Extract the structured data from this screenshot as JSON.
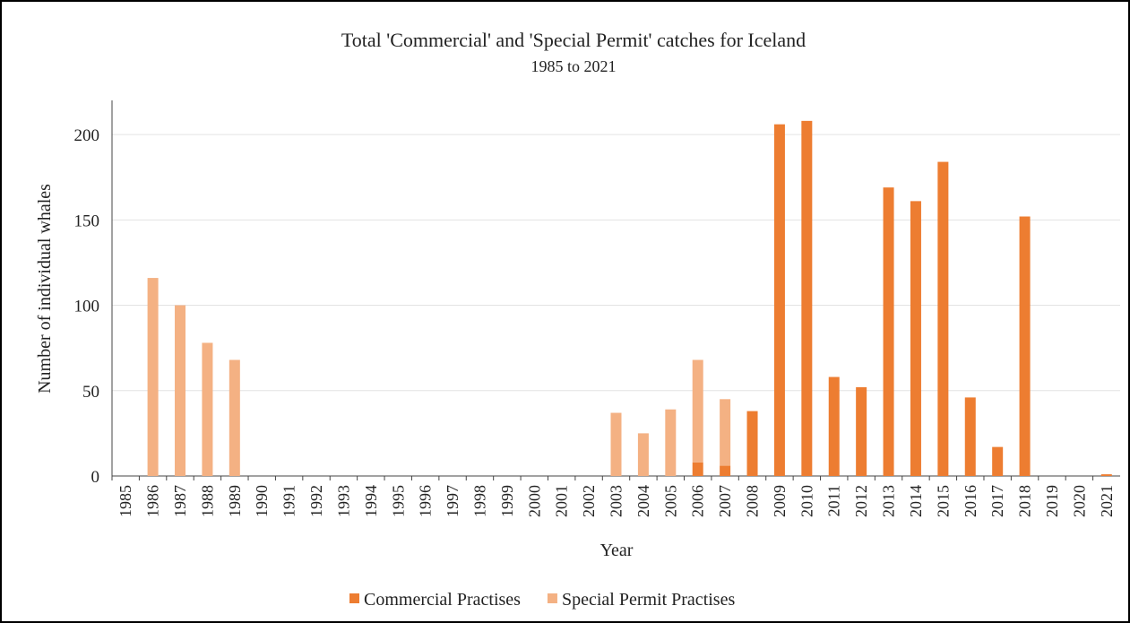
{
  "chart_data": {
    "type": "stacked_bar",
    "title": "Total 'Commercial' and 'Special Permit' catches for Iceland",
    "subtitle": "1985 to 2021",
    "x_label": "Year",
    "y_label": "Number of individual whales",
    "categories": [
      "1985",
      "1986",
      "1987",
      "1988",
      "1989",
      "1990",
      "1991",
      "1992",
      "1993",
      "1994",
      "1995",
      "1996",
      "1997",
      "1998",
      "1999",
      "2000",
      "2001",
      "2002",
      "2003",
      "2004",
      "2005",
      "2006",
      "2007",
      "2008",
      "2009",
      "2010",
      "2011",
      "2012",
      "2013",
      "2014",
      "2015",
      "2016",
      "2017",
      "2018",
      "2019",
      "2020",
      "2021"
    ],
    "series": [
      {
        "name": "Commercial Practises",
        "color": "#ed7d31",
        "values": [
          0,
          0,
          0,
          0,
          0,
          0,
          0,
          0,
          0,
          0,
          0,
          0,
          0,
          0,
          0,
          0,
          0,
          0,
          0,
          0,
          0,
          8,
          6,
          38,
          206,
          208,
          58,
          52,
          169,
          161,
          184,
          46,
          17,
          152,
          0,
          0,
          1
        ]
      },
      {
        "name": "Special Permit Practises",
        "color": "#f4b183",
        "values": [
          0,
          116,
          100,
          78,
          68,
          0,
          0,
          0,
          0,
          0,
          0,
          0,
          0,
          0,
          0,
          0,
          0,
          0,
          37,
          25,
          39,
          60,
          39,
          0,
          0,
          0,
          0,
          0,
          0,
          0,
          0,
          0,
          0,
          0,
          0,
          0,
          0
        ]
      }
    ],
    "ylim": [
      0,
      220
    ],
    "yticks": [
      0,
      50,
      100,
      150,
      200
    ],
    "grid": true,
    "legend": "bottom"
  }
}
